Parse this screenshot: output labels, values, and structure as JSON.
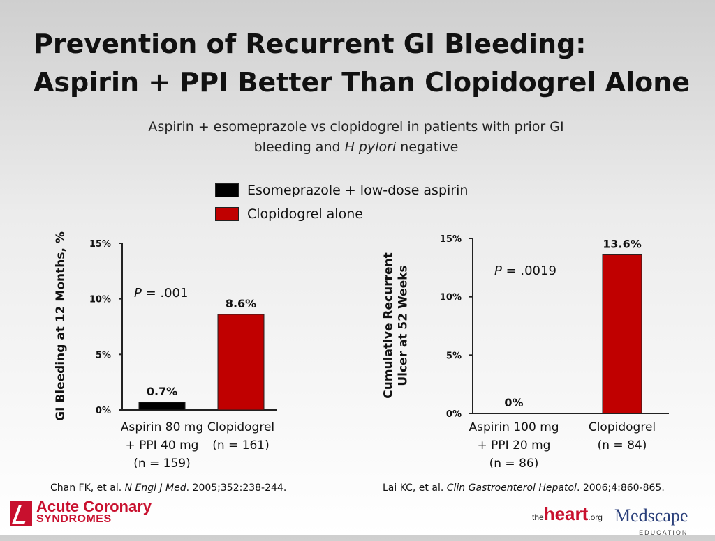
{
  "title": {
    "line1": "Prevention of Recurrent GI Bleeding:",
    "line2": "Aspirin + PPI Better Than Clopidogrel Alone"
  },
  "subtitle": {
    "line1": "Aspirin + esomeprazole vs clopidogrel in patients with prior GI",
    "line2_prefix": "bleeding and ",
    "line2_italic": "H pylori",
    "line2_suffix": " negative"
  },
  "legend": [
    {
      "label": "Esomeprazole + low-dose aspirin",
      "color": "#000000"
    },
    {
      "label": "Clopidogrel alone",
      "color": "#c00000"
    }
  ],
  "chart_data": [
    {
      "type": "bar",
      "ylabel": "GI Bleeding at 12 Months, %",
      "ylim": [
        0,
        15
      ],
      "yticks": [
        "0%",
        "5%",
        "10%",
        "15%"
      ],
      "p_value": {
        "prefix": "P",
        "text": " = .001"
      },
      "bars": [
        {
          "category": [
            "Aspirin 80 mg",
            "+ PPI 40 mg",
            "(n = 159)"
          ],
          "value": 0.7,
          "label": "0.7%",
          "color": "#000000"
        },
        {
          "category": [
            "Clopidogrel",
            "(n = 161)"
          ],
          "value": 8.6,
          "label": "8.6%",
          "color": "#c00000"
        }
      ]
    },
    {
      "type": "bar",
      "ylabel": [
        "Cumulative Recurrent",
        "Ulcer at 52 Weeks"
      ],
      "ylim": [
        0,
        15
      ],
      "yticks": [
        "0%",
        "5%",
        "10%",
        "15%"
      ],
      "p_value": {
        "prefix": "P",
        "text": " = .0019"
      },
      "bars": [
        {
          "category": [
            "Aspirin 100 mg",
            "+ PPI 20 mg",
            "(n = 86)"
          ],
          "value": 0,
          "label": "0%",
          "color": "#000000"
        },
        {
          "category": [
            "Clopidogrel",
            "(n = 84)"
          ],
          "value": 13.6,
          "label": "13.6%",
          "color": "#c00000"
        }
      ]
    }
  ],
  "citations": {
    "left": {
      "authors": "Chan FK, et al. ",
      "journal": "N Engl J Med",
      "rest": ". 2005;352:238-244."
    },
    "right": {
      "authors": "Lai KC, et al. ",
      "journal": "Clin Gastroenterol Hepatol",
      "rest": ". 2006;4:860-865."
    }
  },
  "logos": {
    "acs_line1": "Acute Coronary",
    "acs_line2": "SYNDROMES",
    "heart_pre": "the",
    "heart_main": "heart",
    "heart_suffix": ".org",
    "medscape_main": "Medscape",
    "medscape_sub": "EDUCATION"
  }
}
